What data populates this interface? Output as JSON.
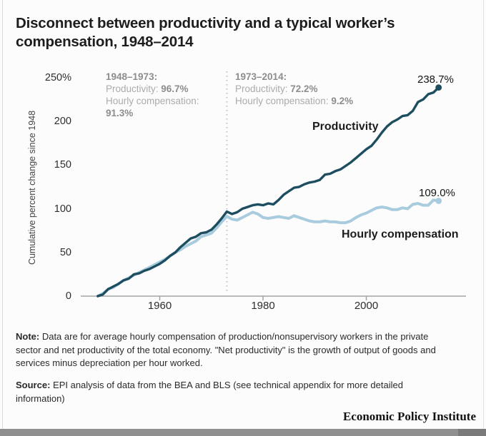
{
  "header": {
    "title": "Disconnect between productivity and a typical worker’s\ncompensation, 1948–2014"
  },
  "chart_data": {
    "type": "line",
    "title": "Disconnect between productivity and a typical worker’s compensation, 1948–2014",
    "ylabel": "Cumulative percent change since 1948",
    "y_ticks": [
      "250%",
      "200",
      "150",
      "100",
      "50",
      "0"
    ],
    "x_ticks": [
      "1960",
      "1980",
      "2000"
    ],
    "ylim": [
      0,
      250
    ],
    "x_range": [
      1948,
      2014
    ],
    "divider_year": 1973,
    "grid": "off",
    "series": [
      {
        "name": "Productivity",
        "color": "#1d4e5f",
        "end_label": "238.7%",
        "values": [
          0,
          2,
          8,
          11,
          14,
          18,
          20,
          25,
          26,
          29,
          31,
          34,
          37,
          41,
          46,
          50,
          56,
          61,
          66,
          68,
          72,
          73,
          76,
          82,
          89,
          96.7,
          94,
          96,
          100,
          102,
          104,
          105,
          104,
          106,
          105,
          110,
          116,
          120,
          124,
          125,
          128,
          130,
          131,
          133,
          139,
          140,
          143,
          145,
          149,
          153,
          158,
          163,
          168,
          172,
          179,
          187,
          194,
          199,
          202,
          206,
          207,
          212,
          222,
          225,
          231,
          233,
          238.7
        ]
      },
      {
        "name": "Hourly compensation",
        "color": "#a9cbde",
        "end_label": "109.0%",
        "values": [
          0,
          3,
          8,
          10,
          14,
          18,
          21,
          24,
          27,
          30,
          33,
          36,
          39,
          42,
          46,
          50,
          53,
          57,
          60,
          63,
          68,
          70,
          72,
          78,
          85,
          91.3,
          88,
          87,
          90,
          93,
          96,
          94,
          90,
          89,
          90,
          91,
          90,
          89,
          92,
          90,
          88,
          86,
          85,
          85,
          86,
          85,
          85,
          84,
          84,
          86,
          90,
          93,
          95,
          98,
          101,
          102,
          101,
          99,
          99,
          101,
          100,
          105,
          106,
          104,
          104,
          110,
          109
        ]
      }
    ],
    "annotations": {
      "period1": {
        "heading": "1948–1973:",
        "rows": [
          {
            "label": "Productivity: ",
            "value": "96.7%"
          },
          {
            "label": "Hourly compensation:",
            "value": "91.3%"
          }
        ]
      },
      "period2": {
        "heading": "1973–2014:",
        "rows": [
          {
            "label": "Productivity: ",
            "value": "72.2%"
          },
          {
            "label": "Hourly compensation: ",
            "value": "9.2%"
          }
        ]
      }
    }
  },
  "notes": {
    "note_label": "Note:",
    "note_text": " Data are for average hourly compensation of production/nonsupervisory workers in the private\nsector and net productivity of the total economy. \"Net productivity\" is the growth of output of goods and\nservices minus depreciation per hour worked.",
    "source_label": "Source:",
    "source_text": " EPI analysis of data from the BEA and BLS (see technical appendix for more detailed\ninformation)"
  },
  "footer": {
    "brand": "Economic Policy Institute"
  }
}
